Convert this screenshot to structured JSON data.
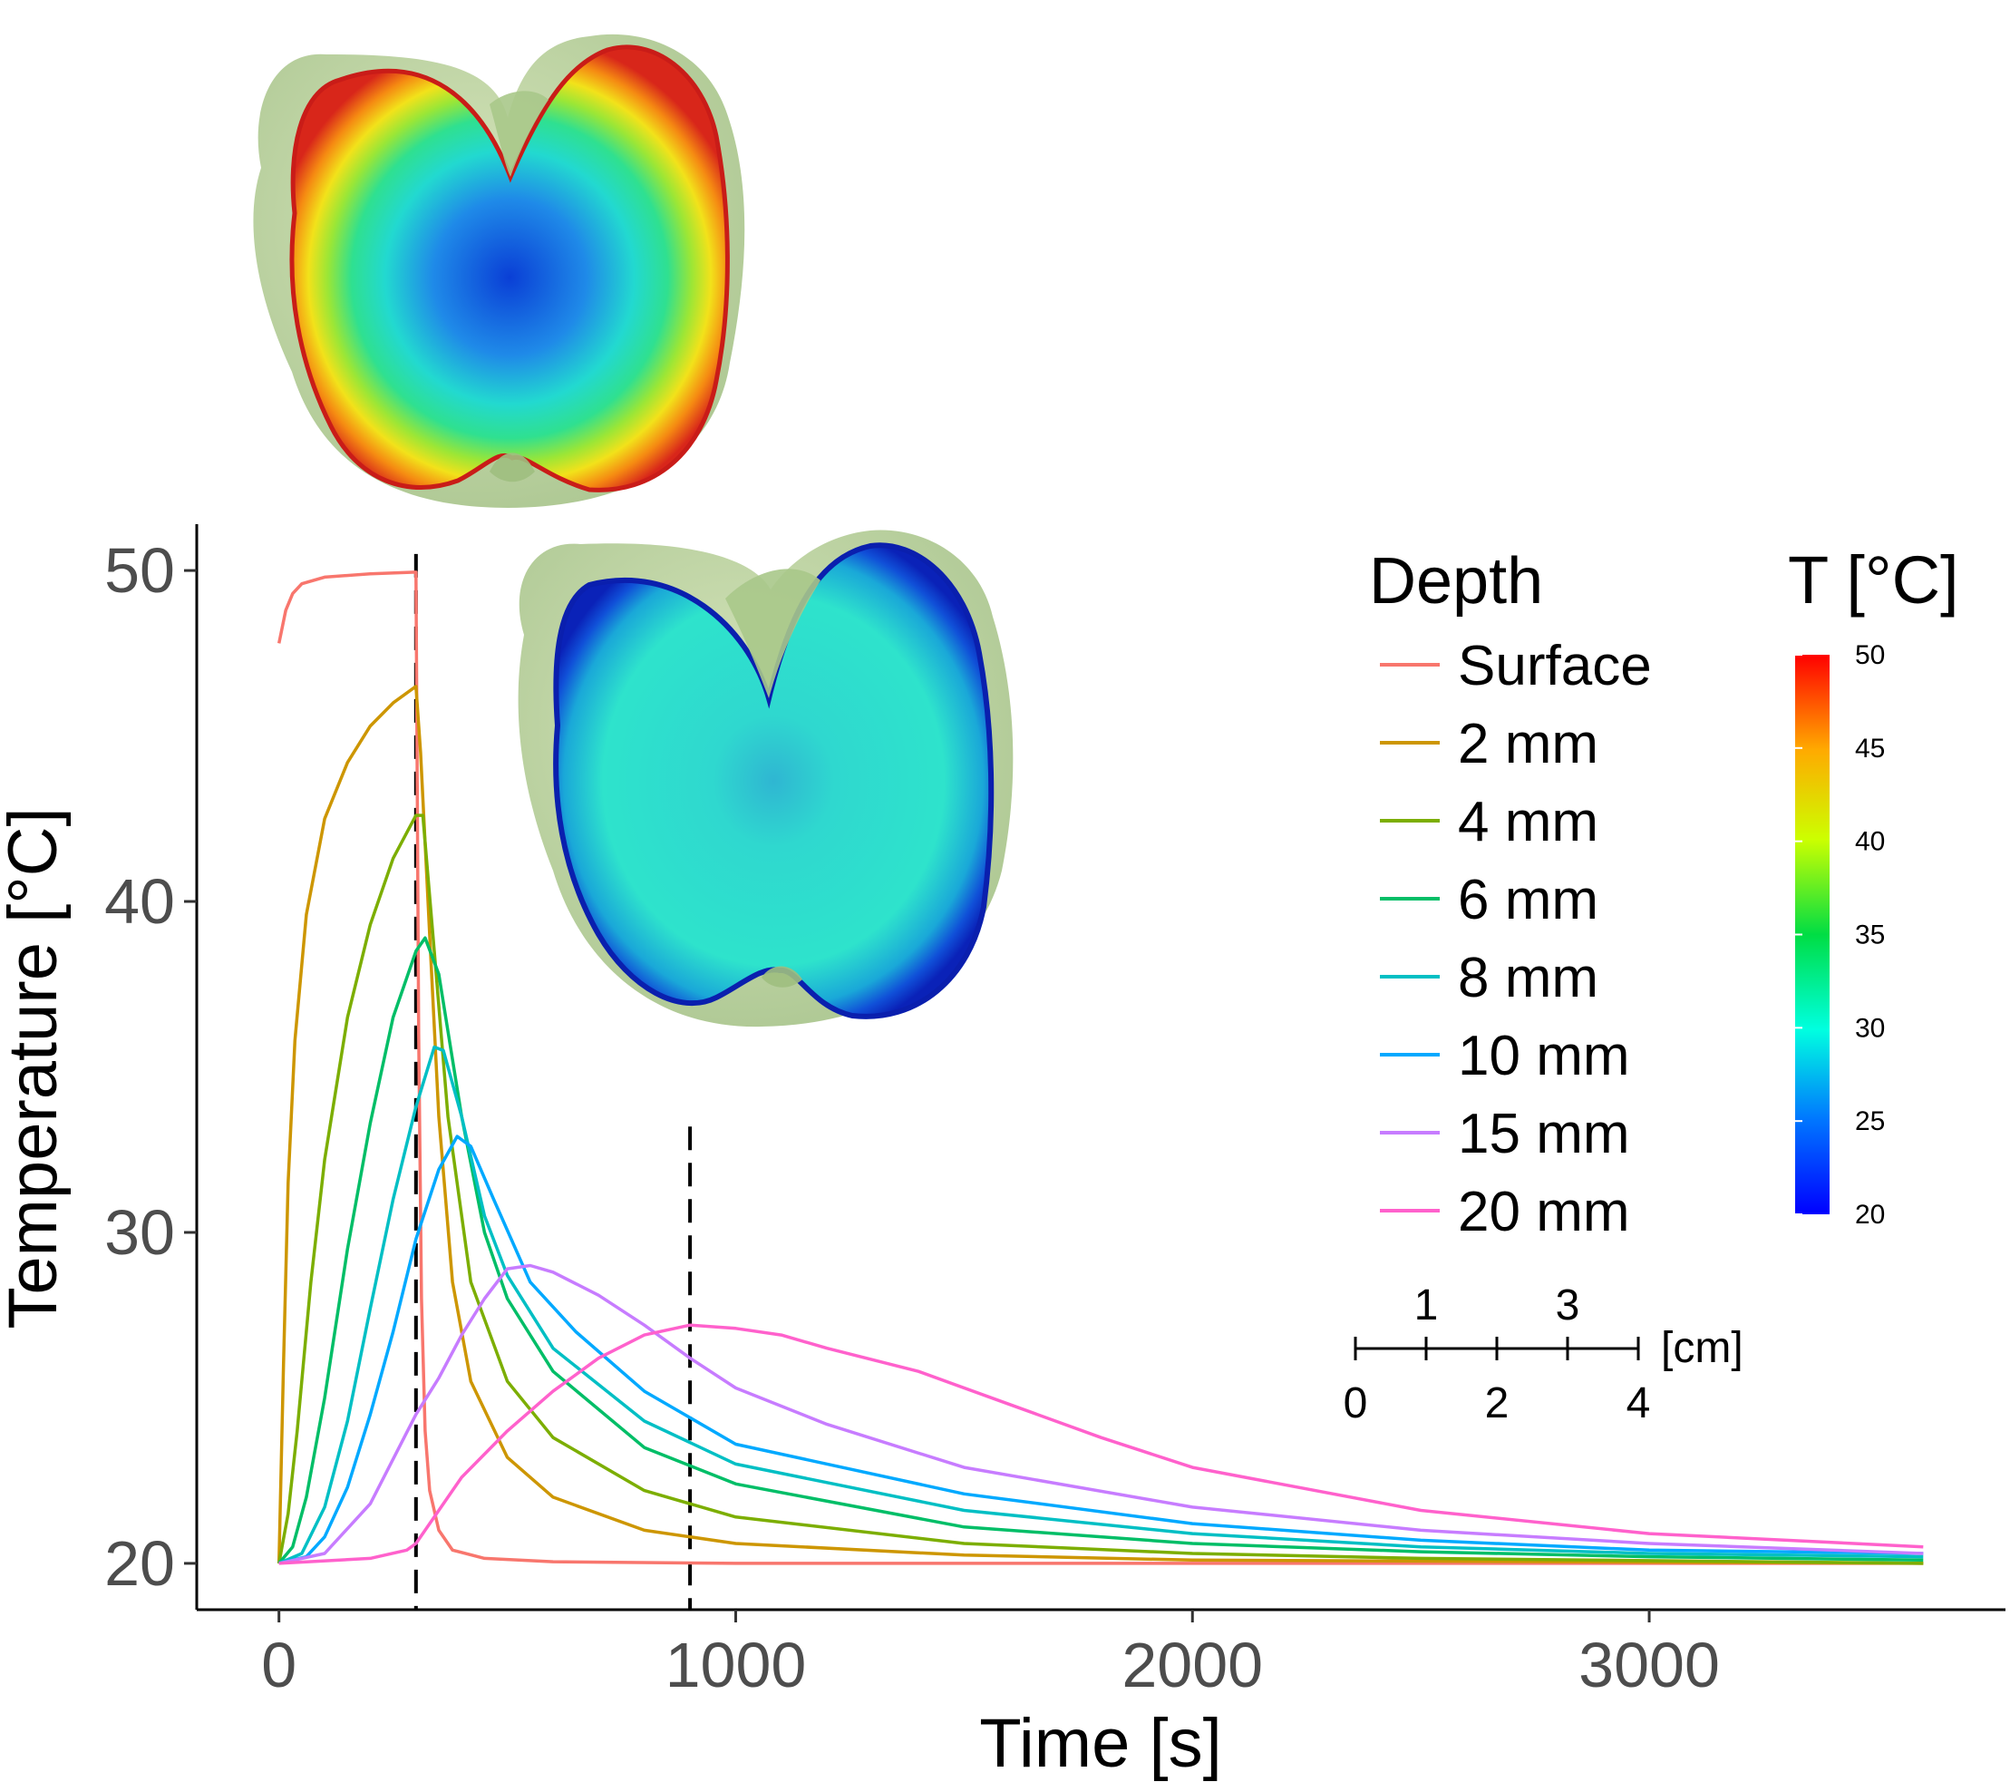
{
  "chart_data": {
    "type": "line",
    "xlabel": "Time [s]",
    "ylabel": "Temperature [°C]",
    "xlim": [
      -180,
      3780
    ],
    "ylim": [
      18.6,
      51.4
    ],
    "xticks": [
      0,
      1000,
      2000,
      3000
    ],
    "yticks": [
      20,
      30,
      40,
      50
    ],
    "tick_labels_x": [
      "0",
      "1000",
      "2000",
      "3000"
    ],
    "tick_labels_y": [
      "20",
      "30",
      "40",
      "50"
    ],
    "grid": false,
    "vlines": [
      300,
      900
    ],
    "legend": {
      "title": "Depth",
      "position": "right",
      "entries": [
        "Surface",
        "2 mm",
        "4 mm",
        "6 mm",
        "8 mm",
        "10 mm",
        "15 mm",
        "20 mm"
      ]
    },
    "series": [
      {
        "name": "Surface",
        "color": "#F8766D",
        "points": [
          [
            0,
            47.8
          ],
          [
            15,
            48.8
          ],
          [
            30,
            49.3
          ],
          [
            50,
            49.6
          ],
          [
            100,
            49.8
          ],
          [
            200,
            49.9
          ],
          [
            300,
            49.95
          ],
          [
            302,
            45.5
          ],
          [
            306,
            36.0
          ],
          [
            312,
            28.0
          ],
          [
            320,
            24.0
          ],
          [
            330,
            22.2
          ],
          [
            350,
            21.0
          ],
          [
            380,
            20.4
          ],
          [
            450,
            20.15
          ],
          [
            600,
            20.05
          ],
          [
            1000,
            20.0
          ],
          [
            3600,
            20.0
          ]
        ]
      },
      {
        "name": "2 mm",
        "color": "#CD9600",
        "points": [
          [
            0,
            20.0
          ],
          [
            10,
            26.0
          ],
          [
            20,
            31.5
          ],
          [
            35,
            35.8
          ],
          [
            60,
            39.6
          ],
          [
            100,
            42.5
          ],
          [
            150,
            44.2
          ],
          [
            200,
            45.3
          ],
          [
            250,
            46.0
          ],
          [
            300,
            46.5
          ],
          [
            310,
            44.5
          ],
          [
            330,
            39.0
          ],
          [
            350,
            33.5
          ],
          [
            380,
            28.5
          ],
          [
            420,
            25.5
          ],
          [
            500,
            23.2
          ],
          [
            600,
            22.0
          ],
          [
            800,
            21.0
          ],
          [
            1000,
            20.6
          ],
          [
            1500,
            20.25
          ],
          [
            2000,
            20.1
          ],
          [
            3600,
            20.0
          ]
        ]
      },
      {
        "name": "4 mm",
        "color": "#7CAE00",
        "points": [
          [
            0,
            20.0
          ],
          [
            20,
            21.5
          ],
          [
            40,
            24.0
          ],
          [
            70,
            28.5
          ],
          [
            100,
            32.2
          ],
          [
            150,
            36.5
          ],
          [
            200,
            39.3
          ],
          [
            250,
            41.3
          ],
          [
            300,
            42.6
          ],
          [
            315,
            42.6
          ],
          [
            340,
            38.5
          ],
          [
            370,
            33.5
          ],
          [
            420,
            28.5
          ],
          [
            500,
            25.5
          ],
          [
            600,
            23.8
          ],
          [
            800,
            22.2
          ],
          [
            1000,
            21.4
          ],
          [
            1500,
            20.6
          ],
          [
            2000,
            20.3
          ],
          [
            2500,
            20.15
          ],
          [
            3600,
            20.0
          ]
        ]
      },
      {
        "name": "6 mm",
        "color": "#00BE67",
        "points": [
          [
            0,
            20.0
          ],
          [
            30,
            20.5
          ],
          [
            60,
            22.0
          ],
          [
            100,
            25.0
          ],
          [
            150,
            29.5
          ],
          [
            200,
            33.3
          ],
          [
            250,
            36.5
          ],
          [
            300,
            38.5
          ],
          [
            320,
            38.9
          ],
          [
            350,
            37.8
          ],
          [
            400,
            33.5
          ],
          [
            450,
            30.0
          ],
          [
            500,
            28.0
          ],
          [
            600,
            25.8
          ],
          [
            800,
            23.5
          ],
          [
            1000,
            22.4
          ],
          [
            1500,
            21.1
          ],
          [
            2000,
            20.6
          ],
          [
            2500,
            20.35
          ],
          [
            3000,
            20.2
          ],
          [
            3600,
            20.1
          ]
        ]
      },
      {
        "name": "8 mm",
        "color": "#00BFC4",
        "points": [
          [
            0,
            20.0
          ],
          [
            50,
            20.3
          ],
          [
            100,
            21.7
          ],
          [
            150,
            24.3
          ],
          [
            200,
            27.7
          ],
          [
            250,
            31.0
          ],
          [
            300,
            33.8
          ],
          [
            340,
            35.6
          ],
          [
            360,
            35.5
          ],
          [
            400,
            33.5
          ],
          [
            450,
            30.5
          ],
          [
            500,
            28.7
          ],
          [
            600,
            26.5
          ],
          [
            800,
            24.3
          ],
          [
            1000,
            23.0
          ],
          [
            1500,
            21.6
          ],
          [
            2000,
            20.9
          ],
          [
            2500,
            20.5
          ],
          [
            3000,
            20.3
          ],
          [
            3600,
            20.2
          ]
        ]
      },
      {
        "name": "10 mm",
        "color": "#00A9FF",
        "points": [
          [
            0,
            20.0
          ],
          [
            60,
            20.2
          ],
          [
            100,
            20.8
          ],
          [
            150,
            22.3
          ],
          [
            200,
            24.5
          ],
          [
            250,
            27.0
          ],
          [
            300,
            29.8
          ],
          [
            350,
            31.9
          ],
          [
            390,
            32.9
          ],
          [
            420,
            32.6
          ],
          [
            470,
            31.0
          ],
          [
            550,
            28.5
          ],
          [
            650,
            27.0
          ],
          [
            800,
            25.2
          ],
          [
            1000,
            23.6
          ],
          [
            1500,
            22.1
          ],
          [
            2000,
            21.2
          ],
          [
            2500,
            20.7
          ],
          [
            3000,
            20.4
          ],
          [
            3600,
            20.3
          ]
        ]
      },
      {
        "name": "15 mm",
        "color": "#C77CFF",
        "points": [
          [
            0,
            20.0
          ],
          [
            100,
            20.3
          ],
          [
            200,
            21.8
          ],
          [
            300,
            24.5
          ],
          [
            350,
            25.6
          ],
          [
            400,
            26.9
          ],
          [
            450,
            28.0
          ],
          [
            500,
            28.9
          ],
          [
            550,
            29.0
          ],
          [
            600,
            28.8
          ],
          [
            700,
            28.1
          ],
          [
            800,
            27.2
          ],
          [
            900,
            26.2
          ],
          [
            1000,
            25.3
          ],
          [
            1200,
            24.2
          ],
          [
            1500,
            22.9
          ],
          [
            2000,
            21.7
          ],
          [
            2500,
            21.0
          ],
          [
            3000,
            20.6
          ],
          [
            3600,
            20.3
          ]
        ]
      },
      {
        "name": "20 mm",
        "color": "#FF61CC",
        "points": [
          [
            0,
            20.0
          ],
          [
            200,
            20.15
          ],
          [
            280,
            20.4
          ],
          [
            300,
            20.6
          ],
          [
            330,
            21.2
          ],
          [
            400,
            22.6
          ],
          [
            500,
            24.0
          ],
          [
            600,
            25.2
          ],
          [
            700,
            26.2
          ],
          [
            800,
            26.9
          ],
          [
            900,
            27.2
          ],
          [
            1000,
            27.1
          ],
          [
            1100,
            26.9
          ],
          [
            1200,
            26.5
          ],
          [
            1400,
            25.8
          ],
          [
            1600,
            24.8
          ],
          [
            1800,
            23.8
          ],
          [
            2000,
            22.9
          ],
          [
            2500,
            21.6
          ],
          [
            3000,
            20.9
          ],
          [
            3600,
            20.5
          ]
        ]
      }
    ],
    "colorbar": {
      "title": "T [°C]",
      "range": [
        20,
        50
      ],
      "ticks": [
        "50",
        "45",
        "40",
        "35",
        "30",
        "25",
        "20"
      ]
    },
    "scale_bar": {
      "unit": "[cm]",
      "upper_labels": [
        "1",
        "3"
      ],
      "lower_labels": [
        "0",
        "2",
        "4"
      ]
    }
  }
}
